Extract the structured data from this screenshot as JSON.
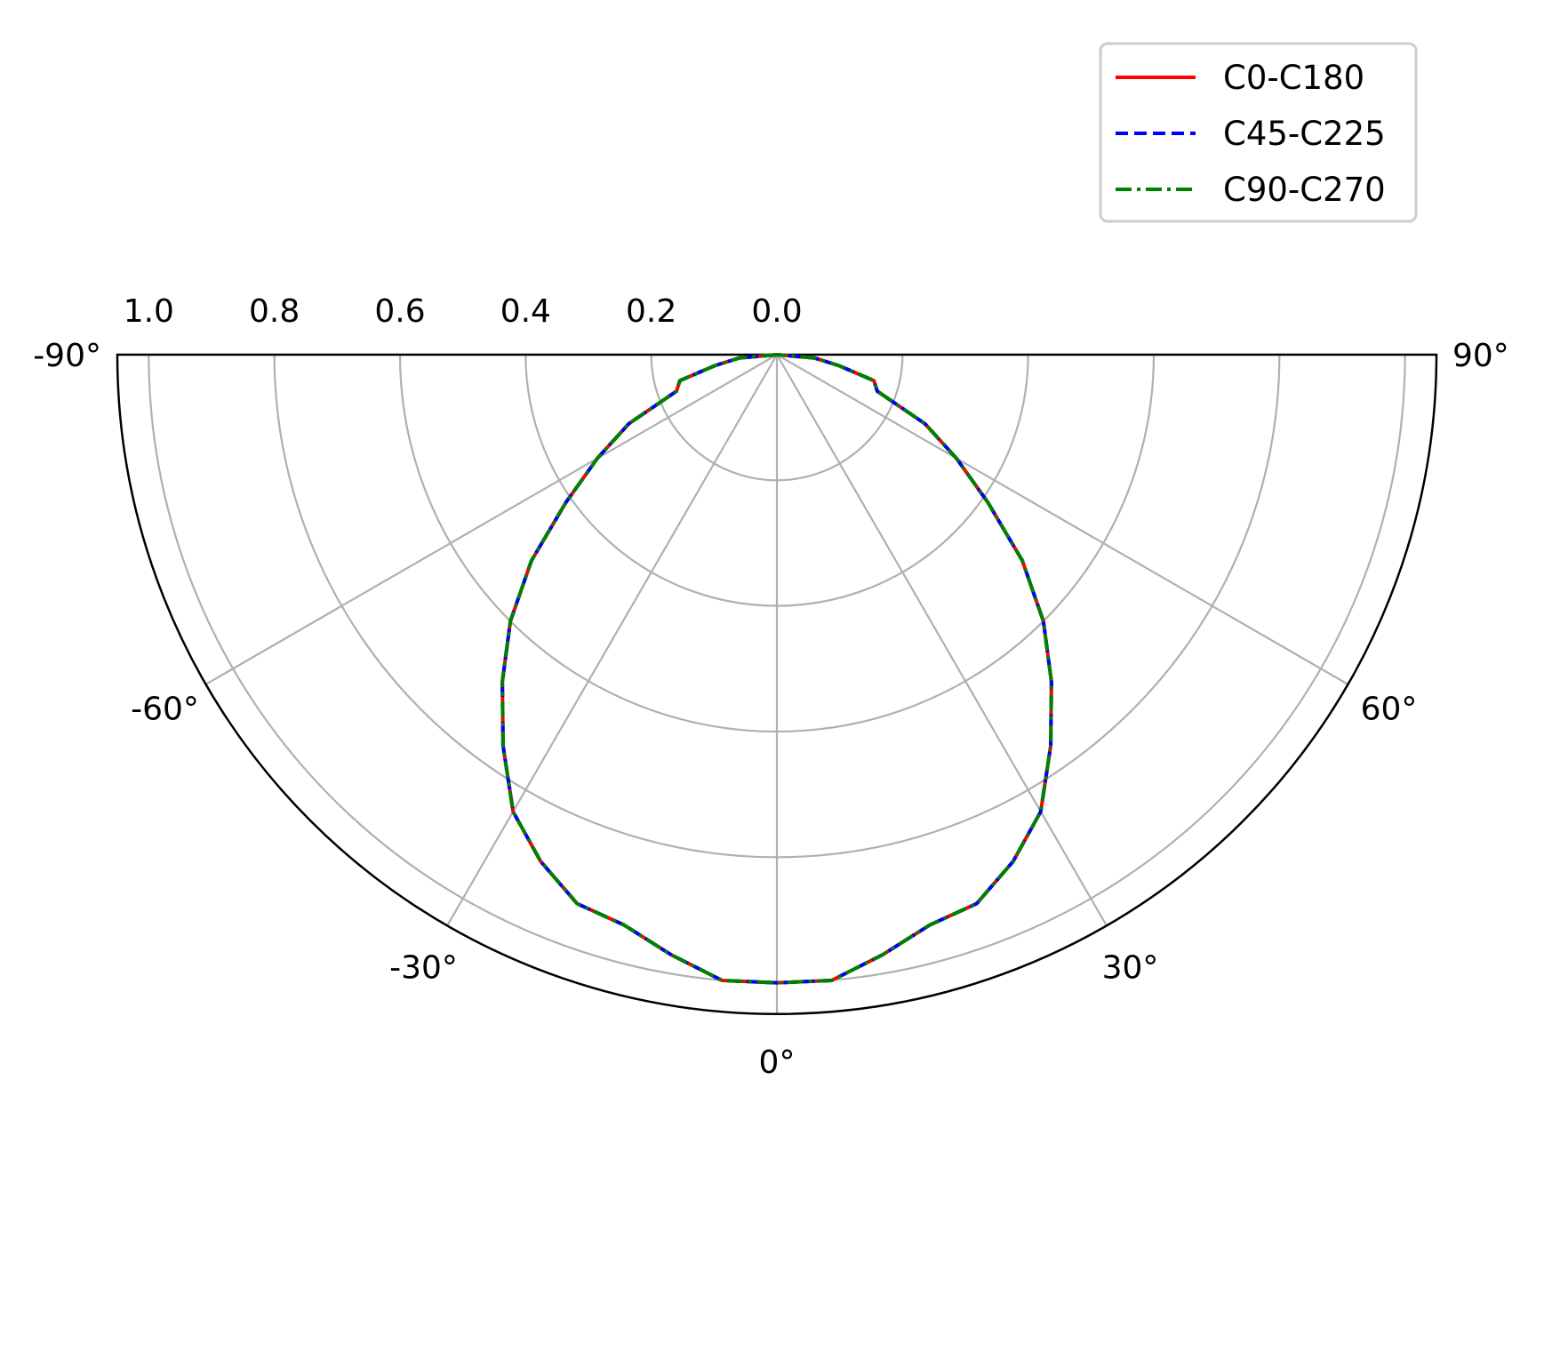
{
  "chart_data": {
    "type": "polar",
    "title": "",
    "angle_range_deg": [
      -90,
      90
    ],
    "angle_ticks": [
      "-90°",
      "-60°",
      "-30°",
      "0°",
      "30°",
      "60°",
      "90°"
    ],
    "angle_tick_values": [
      -90,
      -60,
      -30,
      0,
      30,
      60,
      90
    ],
    "radial_range": [
      0,
      1.05
    ],
    "radial_tick_labels": [
      "1.0",
      "0.8",
      "0.6",
      "0.4",
      "0.2",
      "0.0"
    ],
    "radial_tick_values": [
      1.0,
      0.8,
      0.6,
      0.4,
      0.2,
      0.0
    ],
    "grid": true,
    "legend_position": "top-right",
    "angles_deg": [
      -90,
      -85,
      -80,
      -75,
      -70,
      -65,
      -60,
      -55,
      -50,
      -45,
      -40,
      -35,
      -30,
      -25,
      -20,
      -15,
      -10,
      -5,
      0,
      5,
      10,
      15,
      20,
      25,
      30,
      35,
      40,
      45,
      50,
      55,
      60,
      65,
      70,
      75,
      80,
      85,
      90
    ],
    "series": [
      {
        "name": "C0-C180",
        "color": "#ff0000",
        "dash": "solid",
        "values": [
          0.0,
          0.06,
          0.1,
          0.16,
          0.17,
          0.26,
          0.33,
          0.41,
          0.51,
          0.6,
          0.68,
          0.76,
          0.84,
          0.89,
          0.93,
          0.94,
          0.97,
          1.0,
          1.0,
          1.0,
          0.97,
          0.94,
          0.93,
          0.89,
          0.84,
          0.76,
          0.68,
          0.6,
          0.51,
          0.41,
          0.33,
          0.26,
          0.17,
          0.16,
          0.1,
          0.06,
          0.0
        ]
      },
      {
        "name": "C45-C225",
        "color": "#0000ff",
        "dash": "dashed",
        "values": [
          0.0,
          0.06,
          0.1,
          0.16,
          0.17,
          0.26,
          0.33,
          0.41,
          0.51,
          0.6,
          0.68,
          0.76,
          0.84,
          0.89,
          0.93,
          0.94,
          0.97,
          1.0,
          1.0,
          1.0,
          0.97,
          0.94,
          0.93,
          0.89,
          0.84,
          0.76,
          0.68,
          0.6,
          0.51,
          0.41,
          0.33,
          0.26,
          0.17,
          0.16,
          0.1,
          0.06,
          0.0
        ]
      },
      {
        "name": "C90-C270",
        "color": "#008000",
        "dash": "dashdot",
        "values": [
          0.0,
          0.06,
          0.1,
          0.16,
          0.17,
          0.26,
          0.33,
          0.41,
          0.51,
          0.6,
          0.68,
          0.76,
          0.84,
          0.89,
          0.93,
          0.94,
          0.97,
          1.0,
          1.0,
          1.0,
          0.97,
          0.94,
          0.93,
          0.89,
          0.84,
          0.76,
          0.68,
          0.6,
          0.51,
          0.41,
          0.33,
          0.26,
          0.17,
          0.16,
          0.1,
          0.06,
          0.0
        ]
      }
    ]
  }
}
